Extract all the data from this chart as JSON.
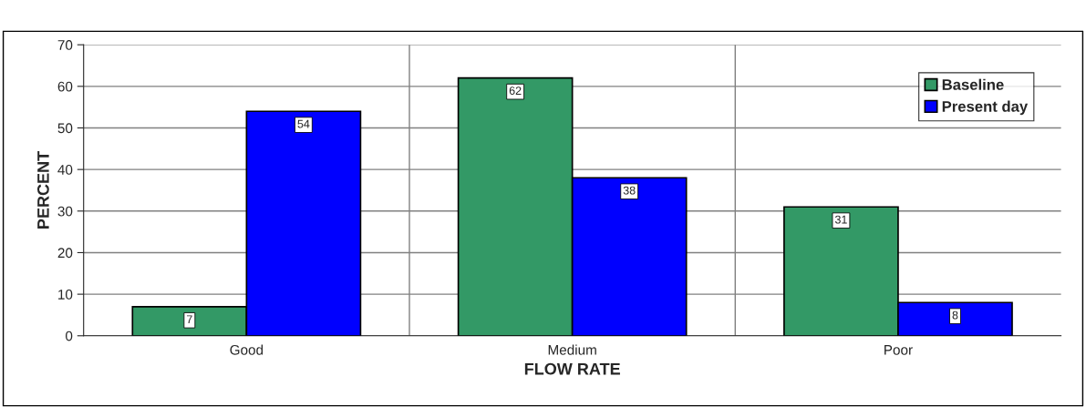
{
  "chart_data": {
    "type": "bar",
    "xlabel": "FLOW RATE",
    "ylabel": "PERCENT",
    "categories": [
      "Good",
      "Medium",
      "Poor"
    ],
    "series": [
      {
        "name": "Baseline",
        "color": "#339966",
        "values": [
          7,
          62,
          31
        ]
      },
      {
        "name": "Present day",
        "color": "#0000ff",
        "values": [
          54,
          38,
          8
        ]
      }
    ],
    "ylim": [
      0,
      70
    ],
    "yticks": [
      0,
      10,
      20,
      30,
      40,
      50,
      60,
      70
    ],
    "grid": true,
    "legend": "top right",
    "data_labels": true
  }
}
